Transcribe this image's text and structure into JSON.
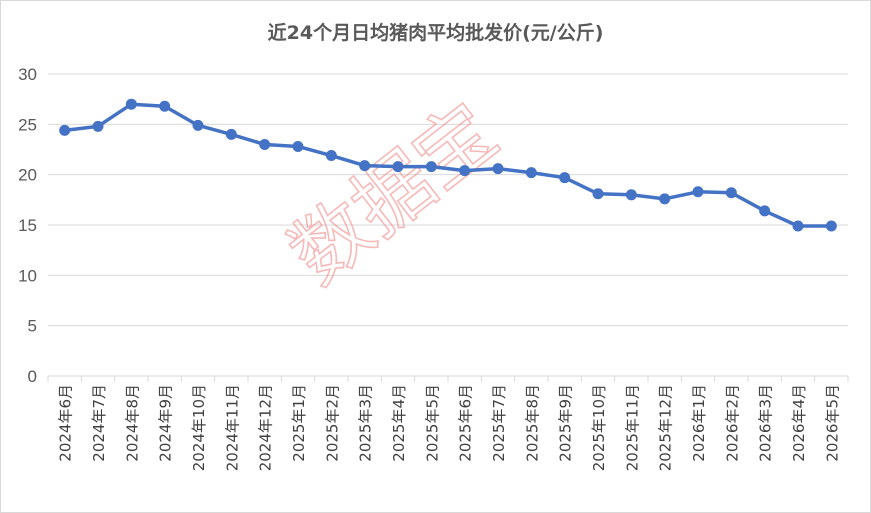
{
  "chart_data": {
    "type": "line",
    "title": "近24个月日均猪肉平均批发价(元/公斤)",
    "categories": [
      "2024年6月",
      "2024年7月",
      "2024年8月",
      "2024年9月",
      "2024年10月",
      "2024年11月",
      "2024年12月",
      "2025年1月",
      "2025年2月",
      "2025年3月",
      "2025年4月",
      "2025年5月",
      "2025年6月",
      "2025年7月",
      "2025年8月",
      "2025年9月",
      "2025年10月",
      "2025年11月",
      "2025年12月",
      "2026年1月",
      "2026年2月",
      "2026年3月",
      "2026年4月",
      "2026年5月"
    ],
    "series": [
      {
        "values": [
          24.4,
          24.8,
          27.0,
          26.8,
          24.9,
          24.0,
          23.0,
          22.8,
          21.9,
          20.9,
          20.8,
          20.8,
          20.4,
          20.6,
          20.2,
          19.7,
          18.1,
          18.0,
          17.6,
          18.3,
          18.2,
          16.4,
          14.9,
          14.9
        ]
      }
    ],
    "yticks": [
      0,
      5,
      10,
      15,
      20,
      25,
      30
    ],
    "ylim": [
      0,
      30
    ],
    "xlabel": "",
    "ylabel": "",
    "grid": true,
    "legend": "none",
    "watermark": "数据宝",
    "colors": {
      "line": "#4472c4",
      "grid": "#d9d9d9",
      "watermark": "#f08080",
      "text": "#595959"
    }
  }
}
